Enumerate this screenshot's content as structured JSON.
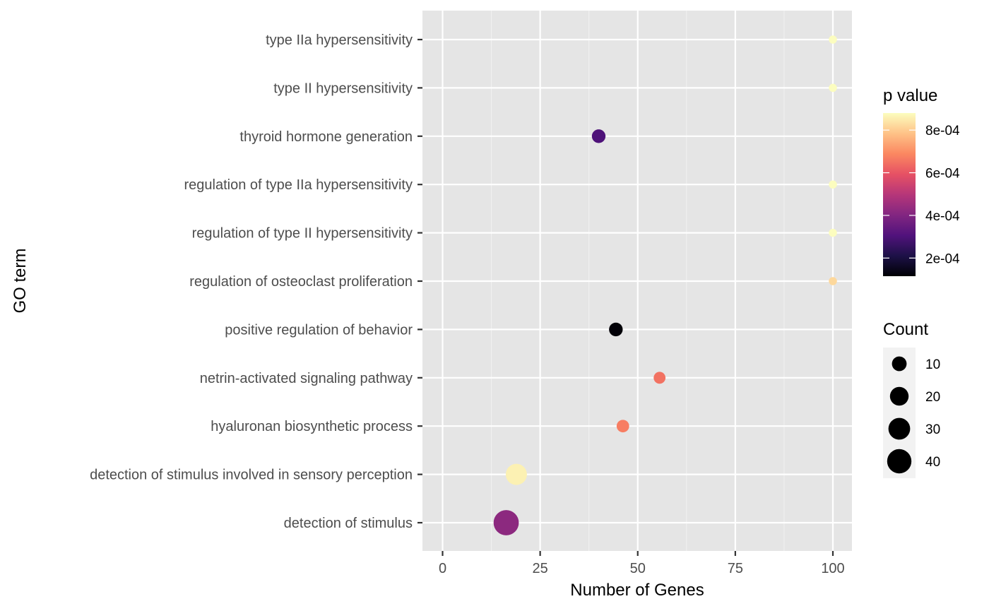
{
  "chart_data": {
    "type": "scatter",
    "title": "",
    "xlabel": "Number of Genes",
    "ylabel": "GO term",
    "xlim": [
      -5,
      105
    ],
    "x_ticks": [
      0,
      25,
      50,
      75,
      100
    ],
    "x_tick_labels": [
      "0",
      "25",
      "50",
      "75",
      "100"
    ],
    "grid": true,
    "legend_position": "right",
    "categories": [
      "type IIa hypersensitivity",
      "type II hypersensitivity",
      "thyroid hormone generation",
      "regulation of type IIa hypersensitivity",
      "regulation of type II hypersensitivity",
      "regulation of osteoclast proliferation",
      "positive regulation of behavior",
      "netrin-activated signaling pathway",
      "hyaluronan biosynthetic process",
      "detection of stimulus involved in sensory perception",
      "detection of stimulus"
    ],
    "points": [
      {
        "term": "type IIa hypersensitivity",
        "x": 100,
        "p_value": 0.00088,
        "count": 1
      },
      {
        "term": "type II hypersensitivity",
        "x": 100,
        "p_value": 0.00088,
        "count": 1
      },
      {
        "term": "thyroid hormone generation",
        "x": 40,
        "p_value": 0.0003,
        "count": 8
      },
      {
        "term": "regulation of type IIa hypersensitivity",
        "x": 100,
        "p_value": 0.00088,
        "count": 1
      },
      {
        "term": "regulation of type II hypersensitivity",
        "x": 100,
        "p_value": 0.00088,
        "count": 1
      },
      {
        "term": "regulation of osteoclast proliferation",
        "x": 100,
        "p_value": 0.00082,
        "count": 1
      },
      {
        "term": "positive regulation of behavior",
        "x": 44.4,
        "p_value": 0.00012,
        "count": 8
      },
      {
        "term": "netrin-activated signaling pathway",
        "x": 55.6,
        "p_value": 0.00065,
        "count": 5
      },
      {
        "term": "hyaluronan biosynthetic process",
        "x": 46.2,
        "p_value": 0.00067,
        "count": 6
      },
      {
        "term": "detection of stimulus involved in sensory perception",
        "x": 18.9,
        "p_value": 0.00086,
        "count": 28
      },
      {
        "term": "detection of stimulus",
        "x": 16.3,
        "p_value": 0.00042,
        "count": 44
      }
    ],
    "color_legend": {
      "title": "p value",
      "min": 0.000115,
      "max": 0.00088,
      "breaks": [
        0.0002,
        0.0004,
        0.0006,
        0.0008
      ],
      "break_labels": [
        "2e-04",
        "4e-04",
        "6e-04",
        "8e-04"
      ],
      "palette": [
        "#000004",
        "#1d1147",
        "#51127c",
        "#822681",
        "#b63679",
        "#e65164",
        "#fb8861",
        "#fec287",
        "#fcfdbf"
      ]
    },
    "size_legend": {
      "title": "Count",
      "breaks": [
        10,
        20,
        30,
        40
      ],
      "break_labels": [
        "10",
        "20",
        "30",
        "40"
      ]
    }
  }
}
